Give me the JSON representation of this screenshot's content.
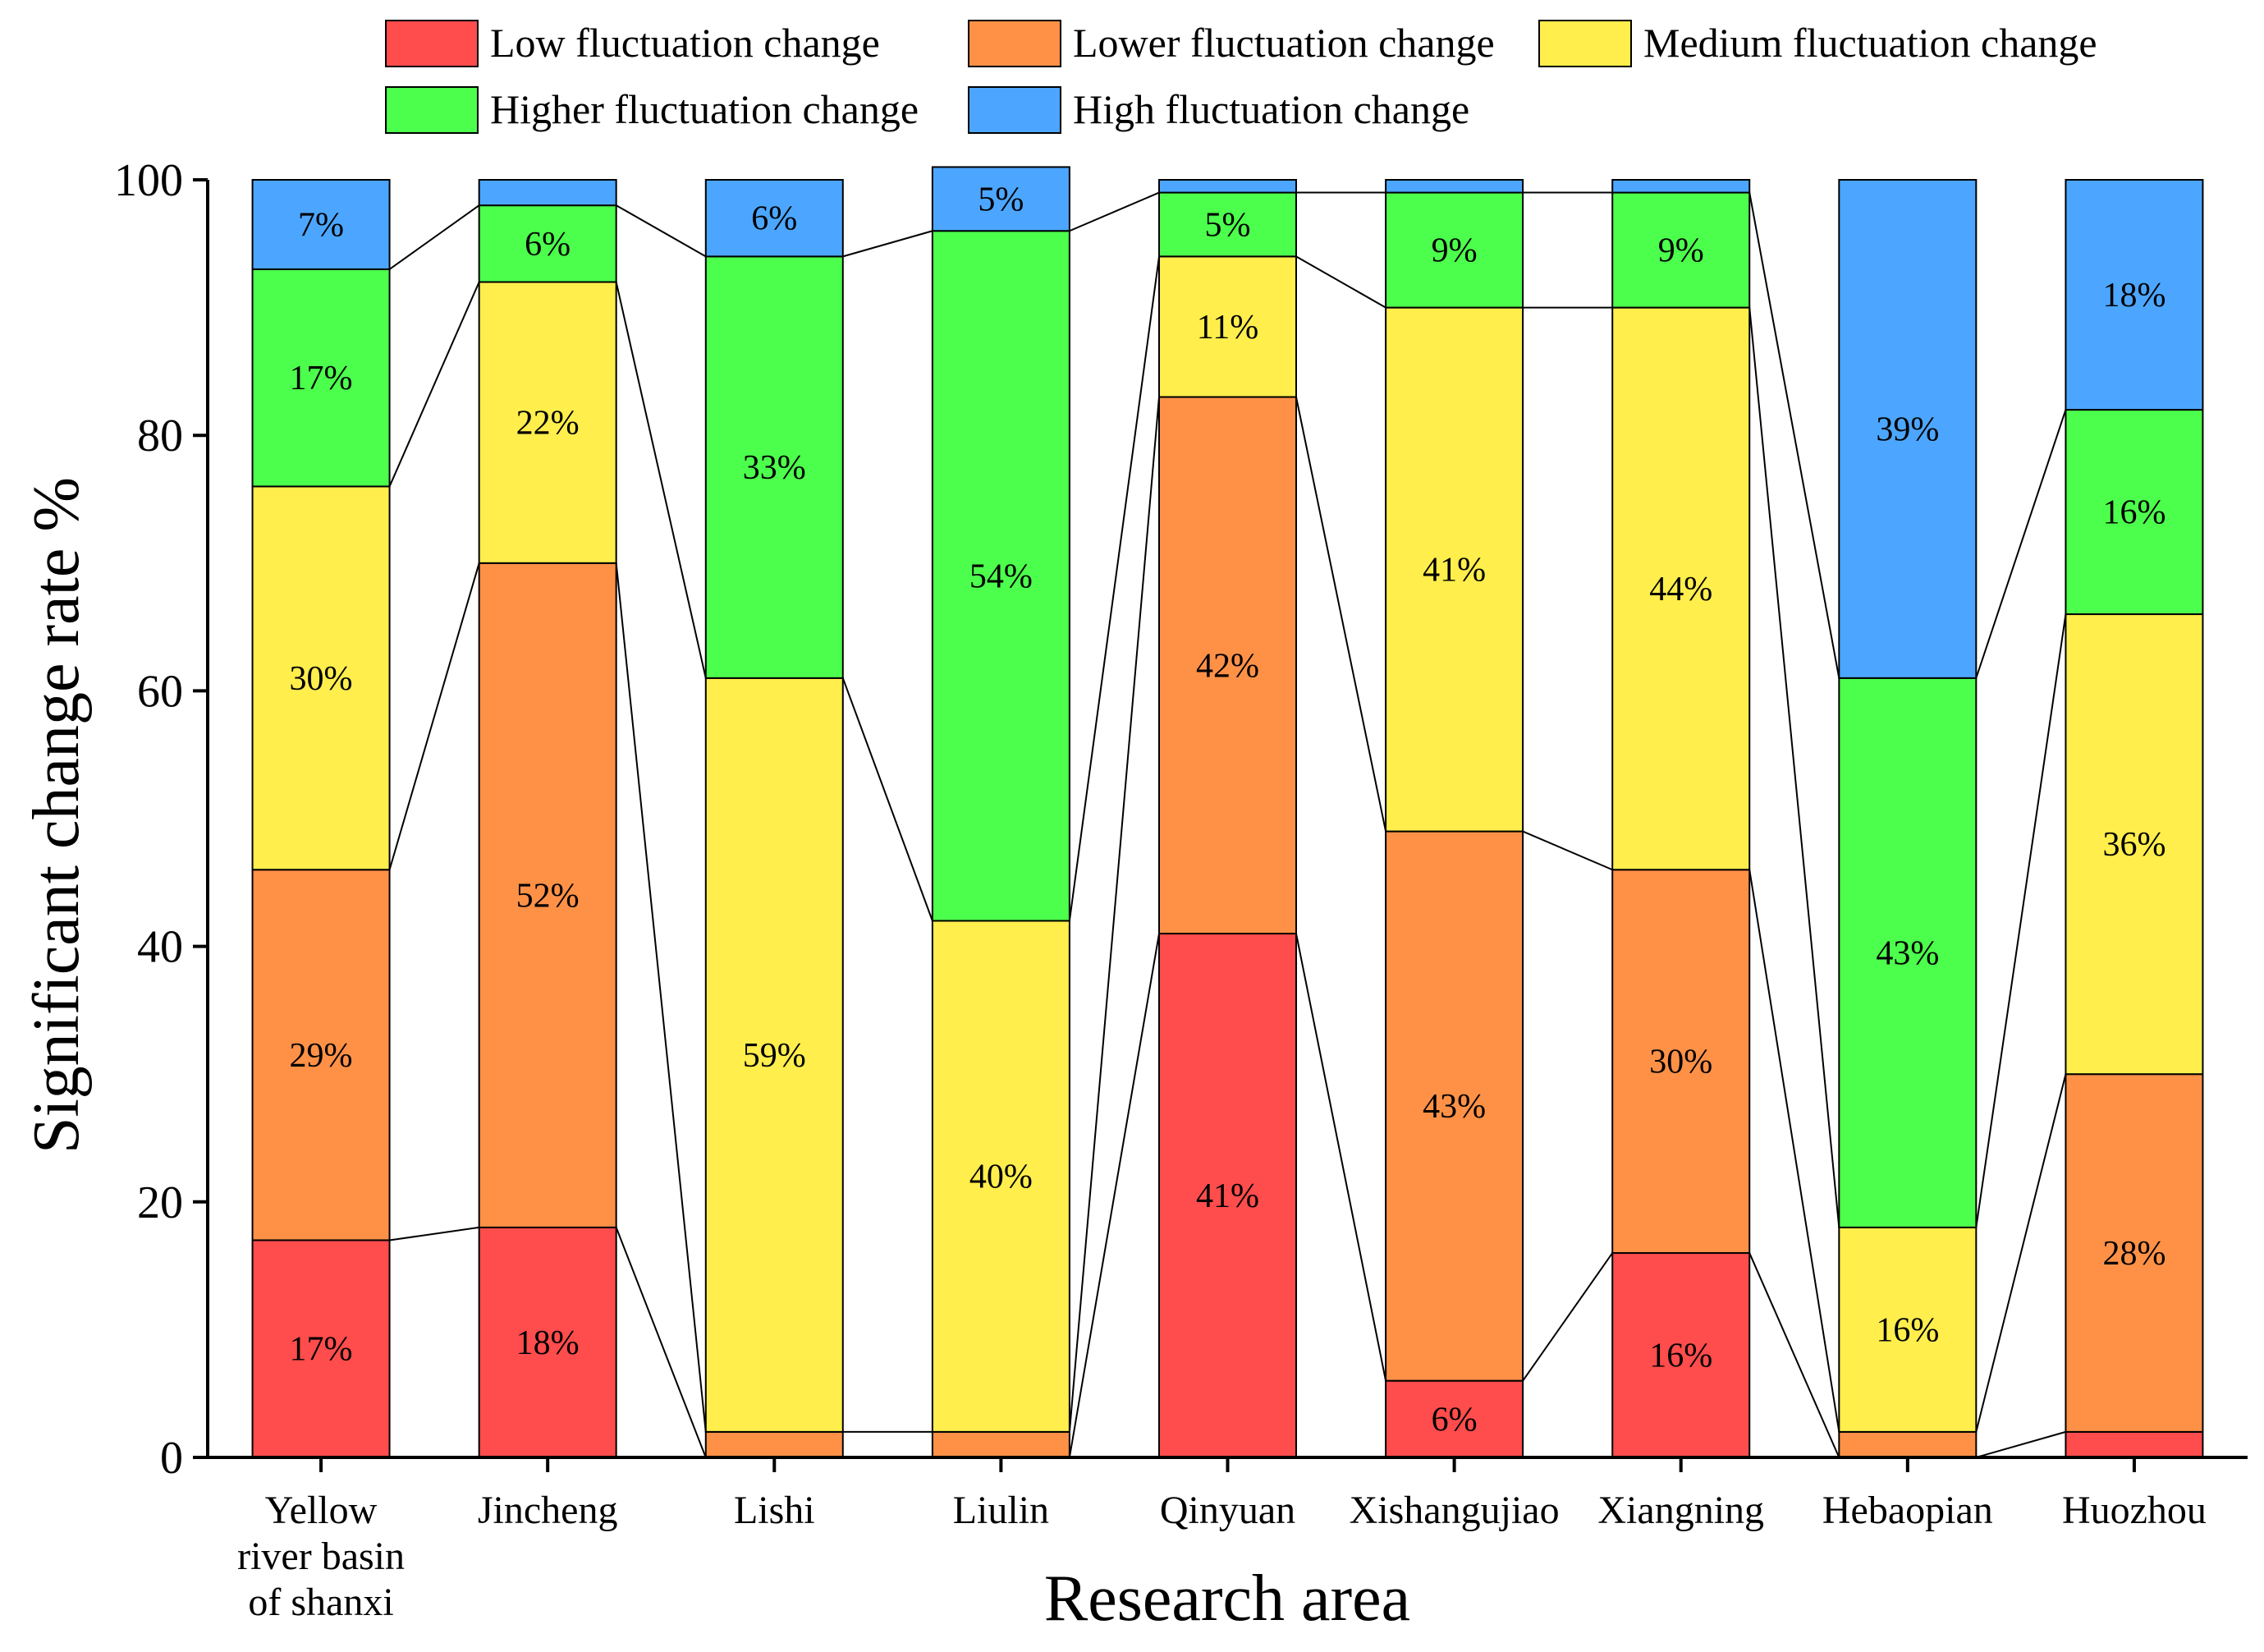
{
  "chart_data": {
    "type": "bar",
    "stacked": true,
    "percent_stacked": true,
    "xlabel": "Research area",
    "ylabel": "Significant change rate %",
    "ylim": [
      0,
      100
    ],
    "yticks": [
      0,
      20,
      40,
      60,
      80,
      100
    ],
    "grid": false,
    "legend_position": "top",
    "categories": [
      [
        "Yellow",
        "river basin",
        "of shanxi"
      ],
      [
        "Jincheng"
      ],
      [
        "Lishi"
      ],
      [
        "Liulin"
      ],
      [
        "Qinyuan"
      ],
      [
        "Xishangujiao"
      ],
      [
        "Xiangning"
      ],
      [
        "Hebaopian"
      ],
      [
        "Huozhou"
      ]
    ],
    "series": [
      {
        "name": "Low fluctuation change",
        "color": "#ff4c4c",
        "values": [
          17,
          18,
          0,
          0,
          41,
          6,
          16,
          0,
          2
        ],
        "labels": [
          "17%",
          "18%",
          "",
          "",
          "41%",
          "6%",
          "16%",
          "",
          ""
        ]
      },
      {
        "name": "Lower fluctuation change",
        "color": "#ff9147",
        "values": [
          29,
          52,
          2,
          2,
          42,
          43,
          30,
          2,
          28
        ],
        "labels": [
          "29%",
          "52%",
          "",
          "",
          "42%",
          "43%",
          "30%",
          "",
          "28%"
        ]
      },
      {
        "name": "Medium fluctuation change",
        "color": "#ffee4c",
        "values": [
          30,
          22,
          59,
          40,
          11,
          41,
          44,
          16,
          36
        ],
        "labels": [
          "30%",
          "22%",
          "59%",
          "40%",
          "11%",
          "41%",
          "44%",
          "16%",
          "36%"
        ]
      },
      {
        "name": "Higher fluctuation change",
        "color": "#4cff4c",
        "values": [
          17,
          6,
          33,
          54,
          5,
          9,
          9,
          43,
          16
        ],
        "labels": [
          "17%",
          "6%",
          "33%",
          "54%",
          "5%",
          "9%",
          "9%",
          "43%",
          "16%"
        ]
      },
      {
        "name": "High fluctuation change",
        "color": "#4ca6ff",
        "values": [
          7,
          2,
          6,
          5,
          1,
          1,
          1,
          39,
          18
        ],
        "labels": [
          "7%",
          "",
          "6%",
          "5%",
          "",
          "",
          "",
          "39%",
          "18%"
        ]
      }
    ]
  }
}
